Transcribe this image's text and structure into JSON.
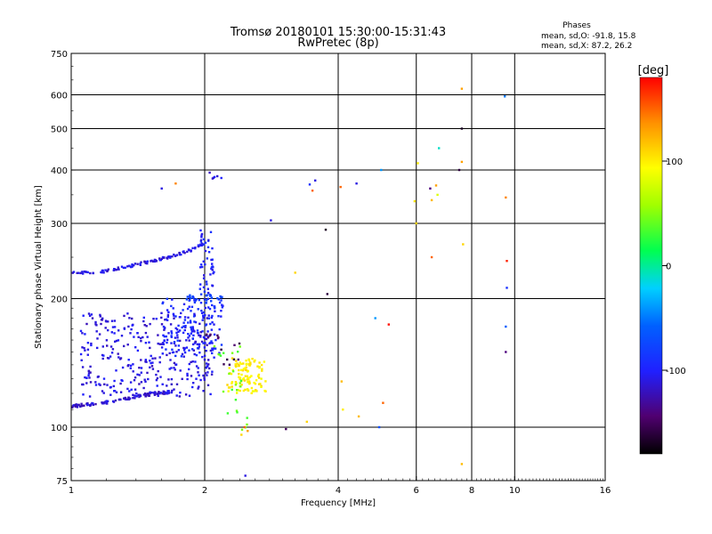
{
  "chart_data": {
    "type": "scatter",
    "title": "Tromsø 20180101 15:30:00-15:31:43",
    "subtitle": "RwPretec (8p)",
    "info": {
      "heading": "Phases",
      "line_o": "mean, sd,O: -91.8, 15.8",
      "line_x": "mean, sd,X: 87.2, 26.2"
    },
    "xlabel": "Frequency [MHz]",
    "ylabel": "Stationary phase Virtual Height [km]",
    "x_scale": "log",
    "y_scale": "log",
    "xlim": [
      1,
      16
    ],
    "ylim": [
      75,
      750
    ],
    "x_ticks": [
      1,
      2,
      4,
      6,
      8,
      10,
      16
    ],
    "x_gridlines": [
      2,
      4,
      6,
      8,
      10
    ],
    "y_ticks": [
      75,
      100,
      200,
      300,
      400,
      500,
      600,
      750
    ],
    "y_gridlines": [
      100,
      200,
      300,
      400,
      500,
      600
    ],
    "colorbar": {
      "label": "[deg]",
      "range": [
        -180,
        180
      ],
      "ticks": [
        100,
        0,
        -100
      ]
    },
    "clusters": [
      {
        "kind": "trace",
        "x": [
          1.0,
          1.1,
          1.25,
          1.4,
          1.55,
          1.7
        ],
        "y": [
          112,
          113,
          115,
          118,
          120,
          121
        ],
        "phase": -115,
        "n": 110,
        "spread": 0.015
      },
      {
        "kind": "trace",
        "x": [
          1.0,
          1.15,
          1.3,
          1.45,
          1.6,
          1.75,
          1.9,
          2.0
        ],
        "y": [
          230,
          230,
          236,
          242,
          248,
          254,
          262,
          270
        ],
        "phase": -110,
        "n": 115,
        "spread": 0.015
      },
      {
        "kind": "cloud",
        "xr": [
          1.05,
          2.1
        ],
        "yr": [
          118,
          185
        ],
        "phase": -110,
        "n": 340
      },
      {
        "kind": "cloud",
        "xr": [
          1.6,
          2.2
        ],
        "yr": [
          145,
          200
        ],
        "phase": -95,
        "n": 140
      },
      {
        "kind": "cloud",
        "xr": [
          1.8,
          2.2
        ],
        "yr": [
          195,
          205
        ],
        "phase": -80,
        "n": 30
      },
      {
        "kind": "cloud",
        "xr": [
          1.95,
          2.1
        ],
        "yr": [
          205,
          295
        ],
        "phase": -100,
        "n": 45
      },
      {
        "kind": "cloud",
        "xr": [
          2.05,
          2.2
        ],
        "yr": [
          380,
          395
        ],
        "phase": -110,
        "n": 6
      },
      {
        "kind": "cloud",
        "xr": [
          2.25,
          2.75
        ],
        "yr": [
          120,
          145
        ],
        "phase": 100,
        "n": 110
      },
      {
        "kind": "cloud",
        "xr": [
          2.1,
          2.5
        ],
        "yr": [
          98,
          155
        ],
        "phase": 40,
        "n": 25
      },
      {
        "kind": "cloud",
        "xr": [
          2.0,
          2.45
        ],
        "yr": [
          140,
          165
        ],
        "phase": -150,
        "n": 15
      }
    ],
    "points": [
      {
        "x": 1.6,
        "y": 362,
        "phase": -110
      },
      {
        "x": 1.72,
        "y": 372,
        "phase": 140
      },
      {
        "x": 2.42,
        "y": 96,
        "phase": 110
      },
      {
        "x": 2.46,
        "y": 100,
        "phase": 150
      },
      {
        "x": 2.5,
        "y": 98,
        "phase": 130
      },
      {
        "x": 2.47,
        "y": 77,
        "phase": -110
      },
      {
        "x": 2.82,
        "y": 305,
        "phase": -110
      },
      {
        "x": 3.05,
        "y": 99,
        "phase": -150
      },
      {
        "x": 3.2,
        "y": 230,
        "phase": 110
      },
      {
        "x": 3.4,
        "y": 103,
        "phase": 110
      },
      {
        "x": 3.45,
        "y": 370,
        "phase": -90
      },
      {
        "x": 3.5,
        "y": 358,
        "phase": 150
      },
      {
        "x": 3.55,
        "y": 378,
        "phase": -110
      },
      {
        "x": 3.75,
        "y": 290,
        "phase": -170
      },
      {
        "x": 3.78,
        "y": 205,
        "phase": -160
      },
      {
        "x": 4.05,
        "y": 365,
        "phase": 150
      },
      {
        "x": 4.07,
        "y": 128,
        "phase": 120
      },
      {
        "x": 4.1,
        "y": 110,
        "phase": 100
      },
      {
        "x": 4.4,
        "y": 372,
        "phase": -110
      },
      {
        "x": 4.45,
        "y": 106,
        "phase": 120
      },
      {
        "x": 4.85,
        "y": 180,
        "phase": -40
      },
      {
        "x": 4.95,
        "y": 100,
        "phase": -70
      },
      {
        "x": 5.0,
        "y": 400,
        "phase": -40
      },
      {
        "x": 5.05,
        "y": 114,
        "phase": 150
      },
      {
        "x": 5.2,
        "y": 174,
        "phase": 175
      },
      {
        "x": 5.95,
        "y": 338,
        "phase": 105
      },
      {
        "x": 6.0,
        "y": 300,
        "phase": 110
      },
      {
        "x": 6.05,
        "y": 415,
        "phase": 100
      },
      {
        "x": 6.45,
        "y": 362,
        "phase": -140
      },
      {
        "x": 6.5,
        "y": 250,
        "phase": 150
      },
      {
        "x": 6.5,
        "y": 340,
        "phase": 120
      },
      {
        "x": 6.65,
        "y": 368,
        "phase": 130
      },
      {
        "x": 6.7,
        "y": 350,
        "phase": 80
      },
      {
        "x": 6.75,
        "y": 450,
        "phase": -10
      },
      {
        "x": 7.5,
        "y": 400,
        "phase": -160
      },
      {
        "x": 7.6,
        "y": 500,
        "phase": -170
      },
      {
        "x": 7.6,
        "y": 620,
        "phase": 130
      },
      {
        "x": 7.6,
        "y": 418,
        "phase": 130
      },
      {
        "x": 7.65,
        "y": 268,
        "phase": 110
      },
      {
        "x": 7.6,
        "y": 82,
        "phase": 120
      },
      {
        "x": 9.5,
        "y": 595,
        "phase": -50
      },
      {
        "x": 9.55,
        "y": 345,
        "phase": 140
      },
      {
        "x": 9.6,
        "y": 245,
        "phase": 170
      },
      {
        "x": 9.6,
        "y": 212,
        "phase": -90
      },
      {
        "x": 9.55,
        "y": 172,
        "phase": -60
      },
      {
        "x": 9.55,
        "y": 150,
        "phase": -140
      }
    ]
  }
}
